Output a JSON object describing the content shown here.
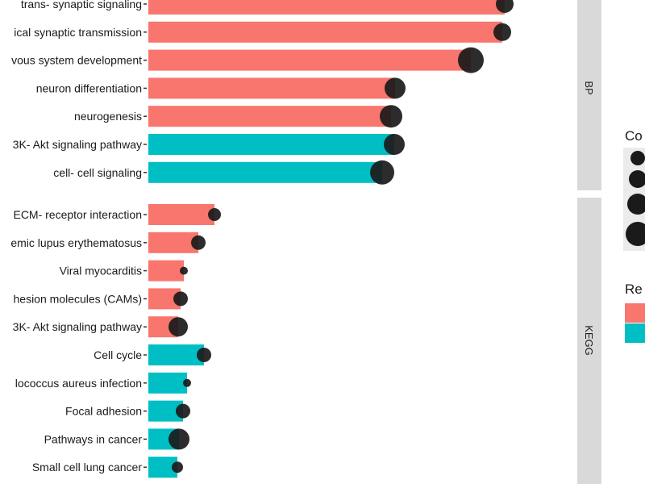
{
  "chart_data": {
    "type": "bar",
    "orientation": "horizontal",
    "facets": [
      {
        "name": "BP",
        "categories": [
          "trans- synaptic signaling",
          "ical synaptic transmission",
          "vous system development",
          "neuron differentiation",
          "neurogenesis",
          "3K- Akt signaling pathway",
          "cell- cell signaling"
        ],
        "values": [
          44.2,
          43.9,
          40.0,
          30.6,
          30.1,
          30.5,
          29.0
        ],
        "groups": [
          "red",
          "red",
          "red",
          "red",
          "red",
          "teal",
          "teal"
        ],
        "count_size": [
          11,
          11,
          16,
          13,
          14,
          13,
          15
        ]
      },
      {
        "name": "KEGG",
        "categories": [
          "ECM- receptor interaction",
          "emic lupus erythematosus",
          "Viral myocarditis",
          "hesion molecules (CAMs)",
          "3K- Akt signaling pathway",
          "Cell cycle",
          "lococcus aureus infection",
          "Focal adhesion",
          "Pathways in cancer",
          "Small cell lung cancer"
        ],
        "values": [
          8.2,
          6.2,
          4.4,
          4.0,
          3.7,
          6.9,
          4.8,
          4.3,
          3.8,
          3.6
        ],
        "groups": [
          "red",
          "red",
          "red",
          "red",
          "red",
          "teal",
          "teal",
          "teal",
          "teal",
          "teal"
        ],
        "count_size": [
          8,
          9,
          5,
          9,
          12,
          9,
          5,
          9,
          13,
          7
        ]
      }
    ],
    "legend": {
      "count_title": "Co",
      "count_sizes": [
        9,
        11,
        13,
        15
      ],
      "reg_title": "Re",
      "placement": "right"
    },
    "colors": {
      "red": "#F8766D",
      "teal": "#00BFC4",
      "dot": "#1a1a1a",
      "strip": "#d9d9d9"
    }
  }
}
